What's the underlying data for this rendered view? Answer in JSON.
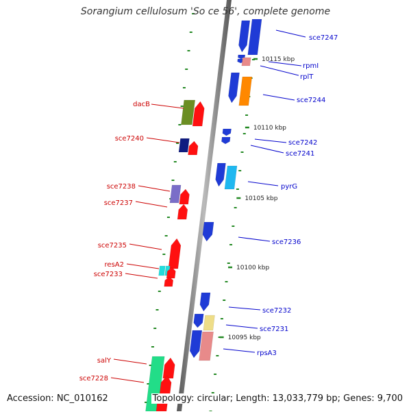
{
  "title": "Sorangium cellulosum 'So ce 56', complete genome",
  "footer": {
    "accession": "Accession: NC_010162",
    "info": "Topology: circular; Length: 13,033,779 bp; Genes: 9,700"
  },
  "colors": {
    "backbone": "#888888",
    "tick": "#228822",
    "forward_label": "#0000cc",
    "reverse_label": "#cc0000"
  },
  "kbp_markers": [
    {
      "label": "10115 kbp"
    },
    {
      "label": "10110 kbp"
    },
    {
      "label": "10105 kbp"
    },
    {
      "label": "10100 kbp"
    },
    {
      "label": "10095 kbp"
    }
  ],
  "forward_genes": [
    {
      "label": "sce7247",
      "color": "#1f3bd6"
    },
    {
      "label": "rpmI",
      "color": "#e88a8a"
    },
    {
      "label": "rplT",
      "color": "#e88a8a"
    },
    {
      "label": "sce7244",
      "color": "#ff8800"
    },
    {
      "label": "sce7242",
      "color": "#1f3bd6"
    },
    {
      "label": "sce7241",
      "color": "#1f3bd6"
    },
    {
      "label": "pyrG",
      "color": "#1fb8f0"
    },
    {
      "label": "sce7236",
      "color": "#1f3bd6"
    },
    {
      "label": "sce7232",
      "color": "#1f3bd6"
    },
    {
      "label": "sce7231",
      "color": "#eedd88"
    },
    {
      "label": "rpsA3",
      "color": "#e88a8a"
    }
  ],
  "reverse_genes": [
    {
      "label": "dacB",
      "color": "#6b8e23"
    },
    {
      "label": "sce7240",
      "color": "#101c80"
    },
    {
      "label": "sce7238",
      "color": "#7a6ec8"
    },
    {
      "label": "sce7237",
      "color": "#ff1010"
    },
    {
      "label": "sce7235",
      "color": "#ff1010"
    },
    {
      "label": "resA2",
      "color": "#22dddd"
    },
    {
      "label": "sce7233",
      "color": "#ff1010"
    },
    {
      "label": "salY",
      "color": "#22dd88"
    },
    {
      "label": "sce7228",
      "color": "#ff1010"
    }
  ]
}
